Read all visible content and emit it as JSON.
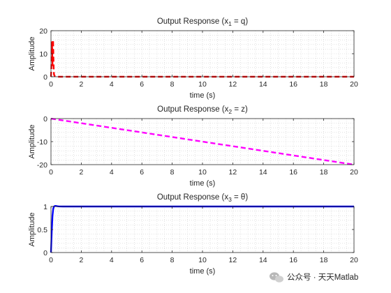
{
  "chart_data": [
    {
      "type": "line",
      "title": "Output Response (x1 = q)",
      "title_parts": {
        "prefix": "Output Response (x",
        "sub": "1",
        "suffix": " = q)"
      },
      "xlabel": "time (s)",
      "ylabel": "Amplitude",
      "xlim": [
        0,
        20
      ],
      "ylim": [
        0,
        20
      ],
      "xticks": [
        0,
        2,
        4,
        6,
        8,
        10,
        12,
        14,
        16,
        18,
        20
      ],
      "yticks": [
        0,
        10,
        20
      ],
      "grid": "minor dotted",
      "series": [
        {
          "color": "#ff0000",
          "style": "dashed",
          "x": [
            0,
            0.02,
            0.04,
            0.06,
            0.08,
            0.1,
            0.12,
            0.14,
            0.16,
            0.18,
            0.2,
            0.24,
            0.3,
            0.5,
            1,
            2,
            5,
            10,
            15,
            20
          ],
          "y": [
            0,
            3,
            8,
            15,
            12,
            5,
            11,
            16,
            9,
            3,
            1,
            0.3,
            0.1,
            0,
            0,
            0,
            0,
            0,
            0,
            0
          ]
        }
      ]
    },
    {
      "type": "line",
      "title": "Output Response (x2 = z)",
      "title_parts": {
        "prefix": "Output Response (x",
        "sub": "2",
        "suffix": " = z)"
      },
      "xlabel": "time (s)",
      "ylabel": "Amplitude",
      "xlim": [
        0,
        20
      ],
      "ylim": [
        -20,
        0
      ],
      "xticks": [
        0,
        2,
        4,
        6,
        8,
        10,
        12,
        14,
        16,
        18,
        20
      ],
      "yticks": [
        -20,
        -10,
        0
      ],
      "grid": "minor dotted",
      "series": [
        {
          "color": "#ff00ff",
          "style": "dashed",
          "x": [
            0,
            20
          ],
          "y": [
            0,
            -20
          ]
        }
      ]
    },
    {
      "type": "line",
      "title": "Output Response (x3 = θ)",
      "title_parts": {
        "prefix": "Output Response (x",
        "sub": "3",
        "suffix": " = θ)"
      },
      "xlabel": "time (s)",
      "ylabel": "Amplitude",
      "xlim": [
        0,
        20
      ],
      "ylim": [
        0,
        1
      ],
      "xticks": [
        0,
        2,
        4,
        6,
        8,
        10,
        12,
        14,
        16,
        18,
        20
      ],
      "yticks": [
        0,
        0.5,
        1
      ],
      "grid": "minor dotted",
      "series": [
        {
          "color": "#0000ff",
          "style": "solid",
          "x": [
            0,
            0.05,
            0.1,
            0.15,
            0.2,
            0.25,
            0.3,
            0.35,
            0.4,
            0.5,
            0.6,
            0.8,
            1,
            2,
            5,
            10,
            15,
            20
          ],
          "y": [
            0,
            0.45,
            0.8,
            0.95,
            1.0,
            1.01,
            1.012,
            1.01,
            1.006,
            1.003,
            1.001,
            1.0,
            1.0,
            1.0,
            1.0,
            1.0,
            1.0,
            1.0
          ]
        }
      ]
    }
  ],
  "watermark": {
    "text": "公众号 · 天天Matlab",
    "icon": "wechat-icon"
  }
}
